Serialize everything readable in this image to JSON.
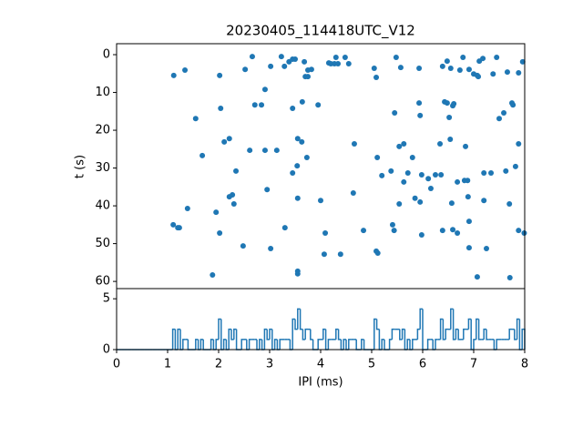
{
  "chart_data": [
    {
      "type": "scatter",
      "title": "20230405_114418UTC_V12",
      "ylabel": "t (s)",
      "color": "#1f77b4",
      "xlim": [
        0,
        8
      ],
      "ylim": [
        61.9,
        -2.9
      ],
      "yticks": [
        0,
        10,
        20,
        30,
        40,
        50,
        60
      ],
      "x": [
        1.12,
        1.34,
        1.11,
        1.2,
        1.23,
        1.39,
        1.55,
        1.68,
        1.88,
        1.95,
        2.02,
        2.04,
        2.02,
        2.11,
        2.21,
        2.21,
        2.27,
        2.3,
        2.34,
        2.48,
        2.52,
        2.61,
        2.66,
        2.71,
        2.84,
        2.91,
        2.91,
        2.95,
        3.02,
        3.02,
        3.14,
        3.23,
        3.29,
        3.3,
        3.38,
        3.45,
        3.45,
        3.5,
        3.45,
        3.54,
        3.55,
        3.55,
        3.55,
        3.55,
        3.63,
        3.64,
        3.68,
        3.7,
        3.75,
        3.73,
        3.75,
        3.82,
        3.95,
        4,
        4.07,
        4.09,
        4.16,
        4.2,
        4.27,
        4.3,
        4.34,
        4.39,
        4.48,
        4.55,
        4.64,
        4.66,
        4.84,
        5.05,
        5.09,
        5.09,
        5.12,
        5.11,
        5.2,
        5.38,
        5.41,
        5.44,
        5.45,
        5.48,
        5.54,
        5.57,
        5.54,
        5.63,
        5.63,
        5.71,
        5.8,
        5.85,
        5.93,
        5.93,
        5.95,
        5.98,
        5.98,
        5.95,
        6.11,
        6.16,
        6.25,
        6.34,
        6.36,
        6.39,
        6.43,
        6.39,
        6.48,
        6.48,
        6.52,
        6.54,
        6.55,
        6.57,
        6.59,
        6.59,
        6.61,
        6.68,
        6.68,
        6.79,
        6.73,
        6.82,
        6.88,
        6.84,
        6.89,
        6.91,
        6.91,
        6.91,
        7,
        7.07,
        7.09,
        7.07,
        7.11,
        7.18,
        7.2,
        7.2,
        7.25,
        7.34,
        7.38,
        7.45,
        7.5,
        7.59,
        7.63,
        7.66,
        7.7,
        7.71,
        7.75,
        7.77,
        7.82,
        7.88,
        7.88,
        7.88,
        7.96,
        7.99
      ],
      "y": [
        5.5,
        4.1,
        45,
        45.8,
        45.8,
        40.7,
        16.9,
        26.7,
        58.3,
        41.7,
        5.5,
        14.2,
        47.2,
        23.1,
        22.2,
        37.6,
        37.1,
        39.5,
        30.8,
        50.6,
        3.9,
        25.3,
        0.5,
        13.3,
        13.3,
        9.2,
        25.3,
        35.7,
        51.3,
        3.1,
        25.3,
        0.5,
        3.1,
        45.8,
        1.9,
        1.2,
        14.2,
        1.2,
        31.3,
        29.4,
        38,
        22.2,
        58,
        57.3,
        23.1,
        12.5,
        1.9,
        5.8,
        5.8,
        27.2,
        4.1,
        3.9,
        13.3,
        38.6,
        52.8,
        47.2,
        2.2,
        2.4,
        2.4,
        0.7,
        2.4,
        52.8,
        0.7,
        2.4,
        36.6,
        23.6,
        46.5,
        3.6,
        6,
        52,
        52.5,
        27.2,
        32,
        30.8,
        45,
        46.5,
        15.4,
        0.7,
        24.3,
        3.4,
        39.5,
        23.6,
        33.7,
        31.3,
        27.2,
        38,
        3.6,
        12.8,
        16.1,
        31.8,
        47.7,
        39,
        32.8,
        35.4,
        31.8,
        23.6,
        31.8,
        46.5,
        12.5,
        3.1,
        1.7,
        12.8,
        16.6,
        22.4,
        3.6,
        39.3,
        46.3,
        13.5,
        13,
        33.7,
        47.2,
        0.7,
        4.1,
        33.3,
        33.3,
        24.3,
        37.6,
        44.1,
        51.1,
        3.9,
        5.1,
        5.5,
        5.8,
        58.8,
        1.7,
        1,
        31.3,
        38.6,
        51.3,
        31.3,
        5.1,
        0.7,
        16.9,
        15.4,
        30.8,
        4.6,
        39.5,
        59,
        12.8,
        13.3,
        29.6,
        4.8,
        23.6,
        46.5,
        1.9,
        47.2
      ]
    },
    {
      "type": "histogram",
      "xlabel": "IPI (ms)",
      "color": "#1f77b4",
      "xlim": [
        0,
        8
      ],
      "xticks": [
        0,
        1,
        2,
        3,
        4,
        5,
        6,
        7,
        8
      ],
      "ylim": [
        0,
        6
      ],
      "yticks": [
        0,
        5
      ],
      "bins": [
        0,
        0.05,
        0.1,
        0.15,
        0.2,
        0.25,
        0.3,
        0.35,
        0.4,
        0.45,
        0.5,
        0.55,
        0.6,
        0.65,
        0.7,
        0.75,
        0.8,
        0.85,
        0.9,
        0.95,
        1,
        1.05,
        1.1,
        1.15,
        1.2,
        1.25,
        1.3,
        1.35,
        1.4,
        1.45,
        1.5,
        1.55,
        1.6,
        1.65,
        1.7,
        1.75,
        1.8,
        1.85,
        1.9,
        1.95,
        2,
        2.05,
        2.1,
        2.15,
        2.2,
        2.25,
        2.3,
        2.35,
        2.4,
        2.45,
        2.5,
        2.55,
        2.6,
        2.65,
        2.7,
        2.75,
        2.8,
        2.85,
        2.9,
        2.95,
        3,
        3.05,
        3.1,
        3.15,
        3.2,
        3.25,
        3.3,
        3.35,
        3.4,
        3.45,
        3.5,
        3.55,
        3.6,
        3.65,
        3.7,
        3.75,
        3.8,
        3.85,
        3.9,
        3.95,
        4,
        4.05,
        4.1,
        4.15,
        4.2,
        4.25,
        4.3,
        4.35,
        4.4,
        4.45,
        4.5,
        4.55,
        4.6,
        4.65,
        4.7,
        4.75,
        4.8,
        4.85,
        4.9,
        4.95,
        5,
        5.05,
        5.1,
        5.15,
        5.2,
        5.25,
        5.3,
        5.35,
        5.4,
        5.45,
        5.5,
        5.55,
        5.6,
        5.65,
        5.7,
        5.75,
        5.8,
        5.85,
        5.9,
        5.95,
        6,
        6.05,
        6.1,
        6.15,
        6.2,
        6.25,
        6.3,
        6.35,
        6.4,
        6.45,
        6.5,
        6.55,
        6.6,
        6.65,
        6.7,
        6.75,
        6.8,
        6.85,
        6.9,
        6.95,
        7,
        7.05,
        7.1,
        7.15,
        7.2,
        7.25,
        7.3,
        7.35,
        7.4,
        7.45,
        7.5,
        7.55,
        7.6,
        7.65,
        7.7,
        7.75,
        7.8,
        7.85,
        7.9,
        7.95,
        8
      ],
      "values": [
        0,
        0,
        0,
        0,
        0,
        0,
        0,
        0,
        0,
        0,
        0,
        0,
        0,
        0,
        0,
        0,
        0,
        0,
        0,
        0,
        0,
        0,
        2,
        0,
        2,
        0,
        1,
        1,
        0,
        0,
        0,
        1,
        0,
        1,
        0,
        0,
        0,
        1,
        0,
        1,
        3,
        0,
        1,
        0,
        2,
        1,
        2,
        0,
        0,
        1,
        1,
        0,
        1,
        1,
        1,
        0,
        1,
        0,
        2,
        1,
        2,
        0,
        1,
        0,
        1,
        1,
        1,
        1,
        0,
        3,
        2,
        4,
        2,
        1,
        2,
        2,
        1,
        0,
        0,
        1,
        1,
        2,
        0,
        1,
        1,
        1,
        2,
        1,
        0,
        1,
        0,
        1,
        1,
        1,
        0,
        0,
        1,
        0,
        0,
        0,
        0,
        3,
        2,
        0,
        1,
        0,
        0,
        1,
        2,
        2,
        2,
        1,
        2,
        0,
        1,
        0,
        1,
        1,
        2,
        4,
        0,
        0,
        1,
        1,
        0,
        1,
        1,
        3,
        1,
        2,
        2,
        4,
        1,
        2,
        1,
        1,
        2,
        2,
        3,
        0,
        1,
        3,
        1,
        1,
        2,
        1,
        1,
        1,
        0,
        1,
        1,
        1,
        1,
        1,
        2,
        2,
        1,
        3,
        0,
        2
      ]
    }
  ]
}
